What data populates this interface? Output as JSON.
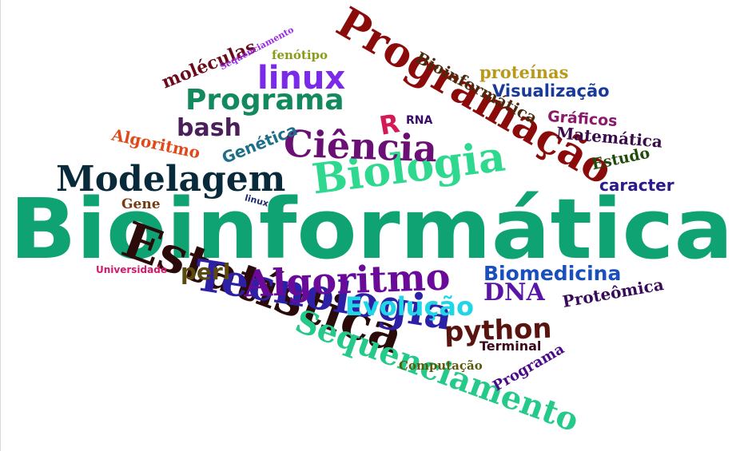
{
  "words": [
    {
      "text": "Bioinformática",
      "color": "#0fa374"
    },
    {
      "text": "Programação",
      "color": "#8b0a0a"
    },
    {
      "text": "Estatística",
      "color": "#2b0a0a"
    },
    {
      "text": "Biologia",
      "color": "#2ed88e"
    },
    {
      "text": "Tecnologia",
      "color": "#2d1fa6"
    },
    {
      "text": "Algoritmo",
      "color": "#6a0a99"
    },
    {
      "text": "Modelagem",
      "color": "#082a3a"
    },
    {
      "text": "Ciência",
      "color": "#6a0f73"
    },
    {
      "text": "Sequenciamento",
      "color": "#25c98a"
    },
    {
      "text": "Programa",
      "color": "#138a5e"
    },
    {
      "text": "linux",
      "color": "#7a2ae8"
    },
    {
      "text": "python",
      "color": "#5a1410"
    },
    {
      "text": "Evolução",
      "color": "#1fd6e6"
    },
    {
      "text": "DNA",
      "color": "#5a14a8"
    },
    {
      "text": "Biomedicina",
      "color": "#1a4fbe"
    },
    {
      "text": "Bioinformática",
      "color": "#4a2a0a"
    },
    {
      "text": "bash",
      "color": "#4a1f5a"
    },
    {
      "text": "R",
      "color": "#d31a55"
    },
    {
      "text": "moléculas",
      "color": "#6a0a1a"
    },
    {
      "text": "Genética",
      "color": "#1f6f8a"
    },
    {
      "text": "Algoritmo",
      "color": "#e04a1a"
    },
    {
      "text": "perl",
      "color": "#5a4a10"
    },
    {
      "text": "proteínas",
      "color": "#b89a1a"
    },
    {
      "text": "Visualização",
      "color": "#1a3a9a"
    },
    {
      "text": "Gráficos",
      "color": "#8a1a6a"
    },
    {
      "text": "Matemática",
      "color": "#3a0a4a"
    },
    {
      "text": "Estudo",
      "color": "#1f4a0a"
    },
    {
      "text": "caracter",
      "color": "#2a1a8a"
    },
    {
      "text": "Proteômica",
      "color": "#3a0a5a"
    },
    {
      "text": "Programa",
      "color": "#4a0a8a"
    },
    {
      "text": "Terminal",
      "color": "#3a0a1a"
    },
    {
      "text": "Computação",
      "color": "#5a5a0a"
    },
    {
      "text": "Gene",
      "color": "#7a3a10"
    },
    {
      "text": "linux",
      "color": "#1a2a6a"
    },
    {
      "text": "Universidade",
      "color": "#d31a6a"
    },
    {
      "text": "RNA",
      "color": "#3a0a6a"
    },
    {
      "text": "fenótipo",
      "color": "#8a9a1a"
    },
    {
      "text": "Sequenciamento",
      "color": "#9a2ae8"
    }
  ]
}
